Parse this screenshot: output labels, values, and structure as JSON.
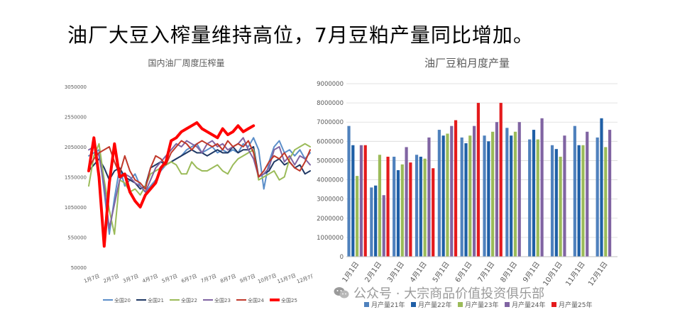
{
  "slide": {
    "title": "油厂大豆入榨量维持高位，7月豆粕产量同比增加。"
  },
  "watermark": {
    "text": "公众号 · 大宗商品价值投资俱乐部",
    "icon": "wechat-icon"
  },
  "chart_data": [
    {
      "type": "line",
      "title": "国内油厂周度压榨量",
      "y_ticks": [
        "3050000",
        "2550000",
        "2050000",
        "1550000",
        "1050000",
        "550000",
        "50000"
      ],
      "ylim": [
        50000,
        3050000
      ],
      "x_ticks": [
        "1月7日",
        "2月7日",
        "3月7日",
        "4月7日",
        "5月7日",
        "6月7日",
        "7月7日",
        "8月7日",
        "9月7日",
        "10月7日",
        "11月7日",
        "12月7日"
      ],
      "grid": false,
      "legend_position": "bottom",
      "series": [
        {
          "name": "全国20",
          "color": "#5b8ec9",
          "width": 2,
          "values": [
            1900000,
            1950000,
            2000000,
            1300000,
            600000,
            1200000,
            1700000,
            1400000,
            1500000,
            1600000,
            1400000,
            1300000,
            1400000,
            1500000,
            1650000,
            1750000,
            1800000,
            1850000,
            1900000,
            2000000,
            2050000,
            2100000,
            1950000,
            2000000,
            2050000,
            1950000,
            2000000,
            1950000,
            2000000,
            1950000,
            2100000,
            2050000,
            2200000,
            2000000,
            1350000,
            1800000,
            2050000,
            2150000,
            1950000,
            2000000,
            1900000,
            2000000,
            1850000,
            1950000
          ]
        },
        {
          "name": "全国21",
          "color": "#1f3864",
          "width": 2,
          "values": [
            1650000,
            1750000,
            1850000,
            1700000,
            1500000,
            1650000,
            1700000,
            1550000,
            1500000,
            1450000,
            1350000,
            1400000,
            1700000,
            1750000,
            1800000,
            1750000,
            1800000,
            1850000,
            1900000,
            1950000,
            2000000,
            1950000,
            1950000,
            1900000,
            1950000,
            2000000,
            1950000,
            1950000,
            2050000,
            1950000,
            2000000,
            2000000,
            2050000,
            1550000,
            1600000,
            1650000,
            1800000,
            1850000,
            1750000,
            1800000,
            1700000,
            1750000,
            1600000,
            1650000
          ]
        },
        {
          "name": "全国22",
          "color": "#9bbb59",
          "width": 2,
          "values": [
            1400000,
            1900000,
            2100000,
            1500000,
            1000000,
            600000,
            1500000,
            1450000,
            1300000,
            1350000,
            1250000,
            1400000,
            1600000,
            1650000,
            1700000,
            1750000,
            1800000,
            1750000,
            1600000,
            1600000,
            1800000,
            1700000,
            1650000,
            1650000,
            1700000,
            1750000,
            1650000,
            1600000,
            1750000,
            1850000,
            1900000,
            1950000,
            2000000,
            1500000,
            1550000,
            1600000,
            1650000,
            1500000,
            1550000,
            1850000,
            2000000,
            2050000,
            2100000,
            2050000
          ]
        },
        {
          "name": "全国23",
          "color": "#8064a2",
          "width": 2,
          "values": [
            2000000,
            2050000,
            1900000,
            1400000,
            700000,
            1100000,
            1500000,
            1600000,
            1550000,
            1450000,
            1400000,
            1300000,
            1500000,
            1700000,
            1800000,
            1900000,
            2000000,
            2100000,
            2050000,
            2150000,
            2100000,
            2050000,
            1950000,
            2100000,
            2150000,
            2050000,
            2100000,
            2000000,
            2050000,
            2100000,
            2200000,
            2000000,
            1850000,
            1550000,
            1600000,
            1700000,
            2000000,
            2050000,
            1800000,
            1900000,
            1750000,
            1900000,
            1850000,
            1750000
          ]
        },
        {
          "name": "全国24",
          "color": "#c0392b",
          "width": 2,
          "values": [
            1700000,
            1850000,
            1950000,
            2000000,
            2050000,
            1800000,
            1600000,
            1900000,
            1650000,
            1500000,
            1450000,
            1350000,
            1700000,
            1900000,
            1850000,
            1750000,
            1950000,
            2050000,
            2150000,
            2100000,
            2000000,
            2100000,
            2150000,
            2100000,
            2050000,
            2100000,
            2000000,
            2150000,
            2050000,
            2100000,
            2050000,
            2150000,
            1950000,
            1550000,
            1650000,
            1800000,
            1900000,
            1850000,
            1950000,
            1800000,
            1700000,
            1650000,
            1800000,
            2000000
          ]
        },
        {
          "name": "全国25",
          "color": "#ff0000",
          "width": 4,
          "values": [
            1650000,
            2200000,
            1550000,
            400000,
            1450000,
            2100000,
            1550000,
            1600000,
            1300000,
            1150000,
            1050000,
            1250000,
            1350000,
            1450000,
            1700000,
            1800000,
            2150000,
            2200000,
            2300000,
            2350000,
            2400000,
            2450000,
            2350000,
            2300000,
            2250000,
            2200000,
            2350000,
            2250000,
            2300000,
            2400000,
            2300000,
            2350000,
            2400000,
            null,
            null,
            null,
            null,
            null,
            null,
            null,
            null,
            null,
            null,
            null
          ]
        }
      ]
    },
    {
      "type": "bar",
      "title": "油厂豆粕月度产量",
      "y_ticks": [
        "9000000",
        "8000000",
        "7000000",
        "6000000",
        "5000000",
        "4000000",
        "3000000",
        "2000000",
        "1000000",
        "0"
      ],
      "ylim": [
        0,
        9000000
      ],
      "categories": [
        "1月1日",
        "2月1日",
        "3月1日",
        "4月1日",
        "5月1日",
        "6月1日",
        "7月1日",
        "8月1日",
        "9月1日",
        "10月1日",
        "11月1日",
        "12月1日"
      ],
      "grid": true,
      "legend_position": "bottom",
      "series": [
        {
          "name": "月产量21年",
          "color": "#4f81bd",
          "values": [
            6800000,
            3600000,
            5200000,
            5300000,
            6600000,
            6200000,
            6300000,
            6700000,
            6100000,
            5800000,
            6800000,
            6200000
          ]
        },
        {
          "name": "月产量22年",
          "color": "#1f5fa6",
          "values": [
            5800000,
            3700000,
            4500000,
            5200000,
            6300000,
            5900000,
            6000000,
            6300000,
            6600000,
            5600000,
            5800000,
            7200000
          ]
        },
        {
          "name": "月产量23年",
          "color": "#9bbb59",
          "values": [
            4200000,
            5300000,
            4800000,
            5100000,
            6400000,
            6300000,
            6500000,
            6500000,
            6100000,
            5200000,
            5800000,
            5700000
          ]
        },
        {
          "name": "月产量24年",
          "color": "#8064a2",
          "values": [
            5800000,
            3200000,
            5700000,
            6200000,
            6800000,
            6800000,
            7000000,
            7000000,
            7200000,
            6300000,
            6500000,
            6600000
          ]
        },
        {
          "name": "月产量25年",
          "color": "#e41a1c",
          "values": [
            5800000,
            5200000,
            4900000,
            4600000,
            7100000,
            8000000,
            8000000,
            null,
            null,
            null,
            null,
            null
          ]
        }
      ]
    }
  ]
}
